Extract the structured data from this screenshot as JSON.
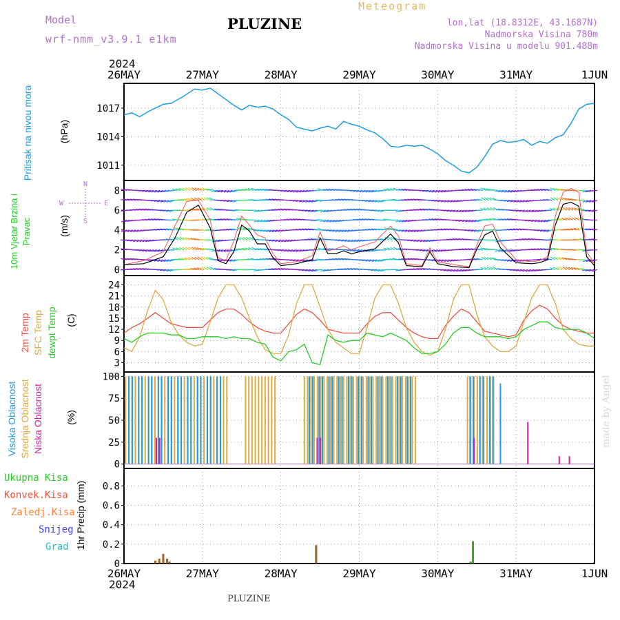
{
  "header": {
    "model_label": "Model",
    "model_name": "wrf-nmm_v3.9.1  e1km",
    "title": "PLUZINE",
    "product": "Meteogram",
    "lonlat": "lon,lat (18.8312E, 43.1687N)",
    "altitude": "Nadmorska Visina 780m",
    "model_altitude": "Nadmorska Visina u modelu 901.488m"
  },
  "footer": {
    "station": "PLUZINE",
    "watermark": "made by Angel"
  },
  "time_axis": {
    "year": "2024",
    "ticks": [
      "26MAY",
      "27MAY",
      "28MAY",
      "29MAY",
      "30MAY",
      "31MAY",
      "1JUN"
    ]
  },
  "colors": {
    "pressure": "#1e9be8",
    "wind_speed": "#000000",
    "wind_gust": "#ff5050",
    "temp_2m": "#ee5040",
    "temp_sfc": "#e0a840",
    "dewpoint": "#22cc22",
    "cloud_high": "#1e9be8",
    "cloud_mid": "#e0a840",
    "cloud_low": "#d020a0",
    "precip_total": "#22cc22",
    "precip_conv": "#ee5040",
    "precip_frozen": "#ff8030",
    "snow": "#4040ff",
    "hail": "#20c0c0"
  },
  "chart_data": [
    {
      "type": "line",
      "panel": "pressure",
      "ylabel": "Pritisak na nivou mora",
      "unit": "(hPa)",
      "yticks": [
        1011,
        1014,
        1017
      ],
      "ylim": [
        1009.4,
        1019.6
      ],
      "x": [
        0,
        0.1,
        0.2,
        0.3,
        0.4,
        0.5,
        0.6,
        0.75,
        0.9,
        1.0,
        1.1,
        1.2,
        1.3,
        1.4,
        1.5,
        1.6,
        1.7,
        1.8,
        1.9,
        2.0,
        2.1,
        2.2,
        2.3,
        2.4,
        2.5,
        2.6,
        2.7,
        2.8,
        2.9,
        3.0,
        3.1,
        3.2,
        3.3,
        3.4,
        3.5,
        3.6,
        3.7,
        3.8,
        3.9,
        4.0,
        4.1,
        4.2,
        4.3,
        4.4,
        4.5,
        4.6,
        4.7,
        4.8,
        4.9,
        5.0,
        5.1,
        5.2,
        5.3,
        5.4,
        5.5,
        5.6,
        5.7,
        5.8,
        5.9,
        6.0
      ],
      "y": [
        1016.3,
        1016.5,
        1016.1,
        1016.6,
        1017.0,
        1017.4,
        1017.5,
        1018.2,
        1019.0,
        1018.9,
        1019.1,
        1018.5,
        1017.9,
        1017.3,
        1016.8,
        1017.3,
        1017.1,
        1017.2,
        1016.9,
        1016.3,
        1015.8,
        1015.0,
        1014.8,
        1014.6,
        1014.9,
        1015.1,
        1014.8,
        1015.6,
        1015.3,
        1015.1,
        1014.7,
        1014.4,
        1013.8,
        1013.0,
        1012.9,
        1013.1,
        1013.0,
        1013.1,
        1012.7,
        1012.2,
        1011.5,
        1011.0,
        1010.4,
        1010.2,
        1010.8,
        1011.9,
        1013.2,
        1013.6,
        1013.4,
        1013.5,
        1013.7,
        1013.1,
        1013.5,
        1013.3,
        1013.9,
        1014.2,
        1015.4,
        1016.9,
        1017.4,
        1017.5
      ]
    },
    {
      "type": "line",
      "panel": "wind",
      "ylabel": "10m Vjetar Brzina i Pravac",
      "unit": "(m/s)",
      "compass": [
        "N",
        "E",
        "S",
        "W"
      ],
      "yticks": [
        0,
        2,
        4,
        6,
        8
      ],
      "ylim": [
        -0.6,
        9.0
      ],
      "x": [
        0,
        0.25,
        0.5,
        0.65,
        0.8,
        0.95,
        1.1,
        1.2,
        1.3,
        1.4,
        1.5,
        1.6,
        1.7,
        1.8,
        1.9,
        2.0,
        2.2,
        2.4,
        2.5,
        2.6,
        2.7,
        2.8,
        2.9,
        3.0,
        3.2,
        3.4,
        3.5,
        3.6,
        3.8,
        3.9,
        4.0,
        4.2,
        4.4,
        4.5,
        4.6,
        4.7,
        4.8,
        5.0,
        5.2,
        5.3,
        5.4,
        5.5,
        5.6,
        5.7,
        5.8,
        5.9,
        6.0
      ],
      "series": [
        {
          "name": "speed",
          "y": [
            0.5,
            0.6,
            1.3,
            3.2,
            5.8,
            6.5,
            4.2,
            0.9,
            0.6,
            1.8,
            4.5,
            3.9,
            2.6,
            2.6,
            1.2,
            0.4,
            0.6,
            1.0,
            3.2,
            1.6,
            1.6,
            1.9,
            1.6,
            1.8,
            2.1,
            3.6,
            2.7,
            0.4,
            0.3,
            1.8,
            0.6,
            0.3,
            0.2,
            2.1,
            3.5,
            3.9,
            2.2,
            0.7,
            0.6,
            0.7,
            1.0,
            4.5,
            6.6,
            6.8,
            6.4,
            1.3,
            0.4
          ]
        },
        {
          "name": "gust",
          "y": [
            0.5,
            0.9,
            1.8,
            4.4,
            6.9,
            7.0,
            5.0,
            1.2,
            0.9,
            2.9,
            5.4,
            4.5,
            3.5,
            3.2,
            1.6,
            0.6,
            0.8,
            1.4,
            3.8,
            1.9,
            2.1,
            2.4,
            2.0,
            2.3,
            2.8,
            4.4,
            3.4,
            0.6,
            0.4,
            2.2,
            0.8,
            0.5,
            0.3,
            2.5,
            4.4,
            4.6,
            2.8,
            1.0,
            0.8,
            0.9,
            1.3,
            5.4,
            7.8,
            8.2,
            7.8,
            1.8,
            0.6
          ]
        }
      ]
    },
    {
      "type": "line",
      "panel": "temperature",
      "ylabels": [
        "2m Temp",
        "SFC Temp",
        "dewpt Temp"
      ],
      "unit": "(C)",
      "yticks": [
        3,
        6,
        9,
        12,
        15,
        18,
        21,
        24
      ],
      "ylim": [
        0.5,
        26.5
      ],
      "x": [
        0,
        0.1,
        0.2,
        0.3,
        0.4,
        0.5,
        0.6,
        0.7,
        0.8,
        0.9,
        1.0,
        1.1,
        1.2,
        1.3,
        1.4,
        1.5,
        1.6,
        1.7,
        1.8,
        1.9,
        2.0,
        2.1,
        2.2,
        2.3,
        2.4,
        2.5,
        2.6,
        2.7,
        2.8,
        2.9,
        3.0,
        3.1,
        3.2,
        3.3,
        3.4,
        3.5,
        3.6,
        3.7,
        3.8,
        3.9,
        4.0,
        4.1,
        4.2,
        4.3,
        4.4,
        4.5,
        4.6,
        4.7,
        4.8,
        4.9,
        5.0,
        5.1,
        5.2,
        5.3,
        5.4,
        5.5,
        5.6,
        5.7,
        5.8,
        5.9,
        6.0
      ],
      "series": [
        {
          "name": "2m Temp",
          "y": [
            11,
            12.5,
            13.5,
            15,
            16.5,
            15,
            13.5,
            13,
            12.5,
            12.5,
            12.5,
            14.5,
            16.5,
            17.5,
            17.5,
            16,
            14,
            12.5,
            11.5,
            11,
            11,
            13.5,
            16,
            17.5,
            16.5,
            14.5,
            12,
            11.5,
            11,
            11,
            11,
            13.5,
            15.5,
            16.5,
            16.5,
            14.5,
            12.5,
            11,
            10,
            9.5,
            9.5,
            13,
            15.5,
            17.5,
            16.5,
            14,
            11.5,
            11,
            10.5,
            10,
            10.5,
            14.5,
            17,
            18.5,
            17.5,
            15,
            13,
            12,
            11.5,
            11,
            11
          ]
        },
        {
          "name": "SFC Temp",
          "y": [
            7,
            6,
            10,
            17,
            22.5,
            20,
            14,
            10.5,
            8.5,
            7.5,
            8,
            14,
            20.5,
            24,
            24,
            20.5,
            15,
            10,
            6.5,
            5.5,
            5.5,
            10.5,
            19,
            24,
            24,
            18,
            12,
            8.5,
            7,
            5.5,
            5.5,
            12.5,
            20.5,
            24,
            24,
            19,
            12.5,
            8.5,
            6,
            5,
            6,
            12,
            20,
            24,
            24,
            16,
            10,
            7.5,
            6,
            6,
            7.5,
            14,
            20.5,
            24,
            24,
            19,
            12,
            9.5,
            8,
            7.5,
            7.5
          ]
        },
        {
          "name": "dewpt Temp",
          "y": [
            9.5,
            8.5,
            10,
            11,
            11,
            11,
            10.5,
            10.5,
            9.5,
            9.5,
            10,
            10,
            10,
            9.5,
            10,
            9.5,
            9.5,
            8.5,
            8,
            4.5,
            3.5,
            6,
            6.5,
            8,
            3,
            2.5,
            10.5,
            9,
            8.5,
            9,
            9,
            11,
            10.5,
            10,
            11,
            10,
            9,
            7,
            5.5,
            5.5,
            6,
            8,
            11,
            12.5,
            12.5,
            11,
            10,
            10,
            10,
            9.5,
            10,
            12,
            13,
            14,
            14,
            12.5,
            12,
            12,
            12,
            11,
            9.5
          ]
        }
      ]
    },
    {
      "type": "bar",
      "panel": "cloud",
      "ylabels": [
        "Visoka Oblacnost",
        "Srednja Oblacnost",
        "Niska Oblacnost"
      ],
      "unit": "(%)",
      "yticks": [
        0,
        25,
        50,
        75,
        100
      ],
      "ylim": [
        -5,
        105
      ],
      "segments": [
        {
          "name": "Visoka Oblacnost",
          "ranges": [
            [
              0.05,
              1.25
            ],
            [
              2.35,
              3.7
            ],
            [
              4.4,
              4.7
            ]
          ],
          "value": 100
        },
        {
          "name": "Srednja Oblacnost",
          "ranges": [
            [
              0.02,
              1.35
            ],
            [
              1.55,
              1.95
            ],
            [
              2.3,
              3.75
            ],
            [
              4.38,
              4.72
            ]
          ],
          "value": 100
        },
        {
          "name": "Niska Oblacnost",
          "ranges": [
            [
              0.4,
              0.45
            ],
            [
              2.45,
              2.5
            ],
            [
              4.45,
              4.48
            ]
          ],
          "value": 30
        }
      ],
      "extra_bars": [
        {
          "x": 4.8,
          "value": 92,
          "series": "Visoka Oblacnost"
        },
        {
          "x": 5.15,
          "value": 48,
          "series": "Niska Oblacnost"
        },
        {
          "x": 5.55,
          "value": 9,
          "series": "Niska Oblacnost"
        },
        {
          "x": 5.68,
          "value": 9,
          "series": "Niska Oblacnost"
        }
      ]
    },
    {
      "type": "bar",
      "panel": "precip",
      "ylabel": "1hr Precip (mm)",
      "legend": [
        "Ukupna Kisa",
        "Konvek.Kisa",
        "Zaledj.Kisa",
        "Snijeg",
        "Grad"
      ],
      "yticks": [
        0,
        0.2,
        0.4,
        0.6,
        0.8
      ],
      "ylim": [
        0,
        0.98
      ],
      "bars": [
        {
          "x": 0.4,
          "value": 0.03
        },
        {
          "x": 0.45,
          "value": 0.05
        },
        {
          "x": 0.5,
          "value": 0.1
        },
        {
          "x": 0.55,
          "value": 0.05
        },
        {
          "x": 0.58,
          "value": 0.02
        },
        {
          "x": 2.45,
          "value": 0.19
        },
        {
          "x": 4.45,
          "value": 0.23
        },
        {
          "x": 4.42,
          "value": 0.02
        }
      ]
    }
  ]
}
